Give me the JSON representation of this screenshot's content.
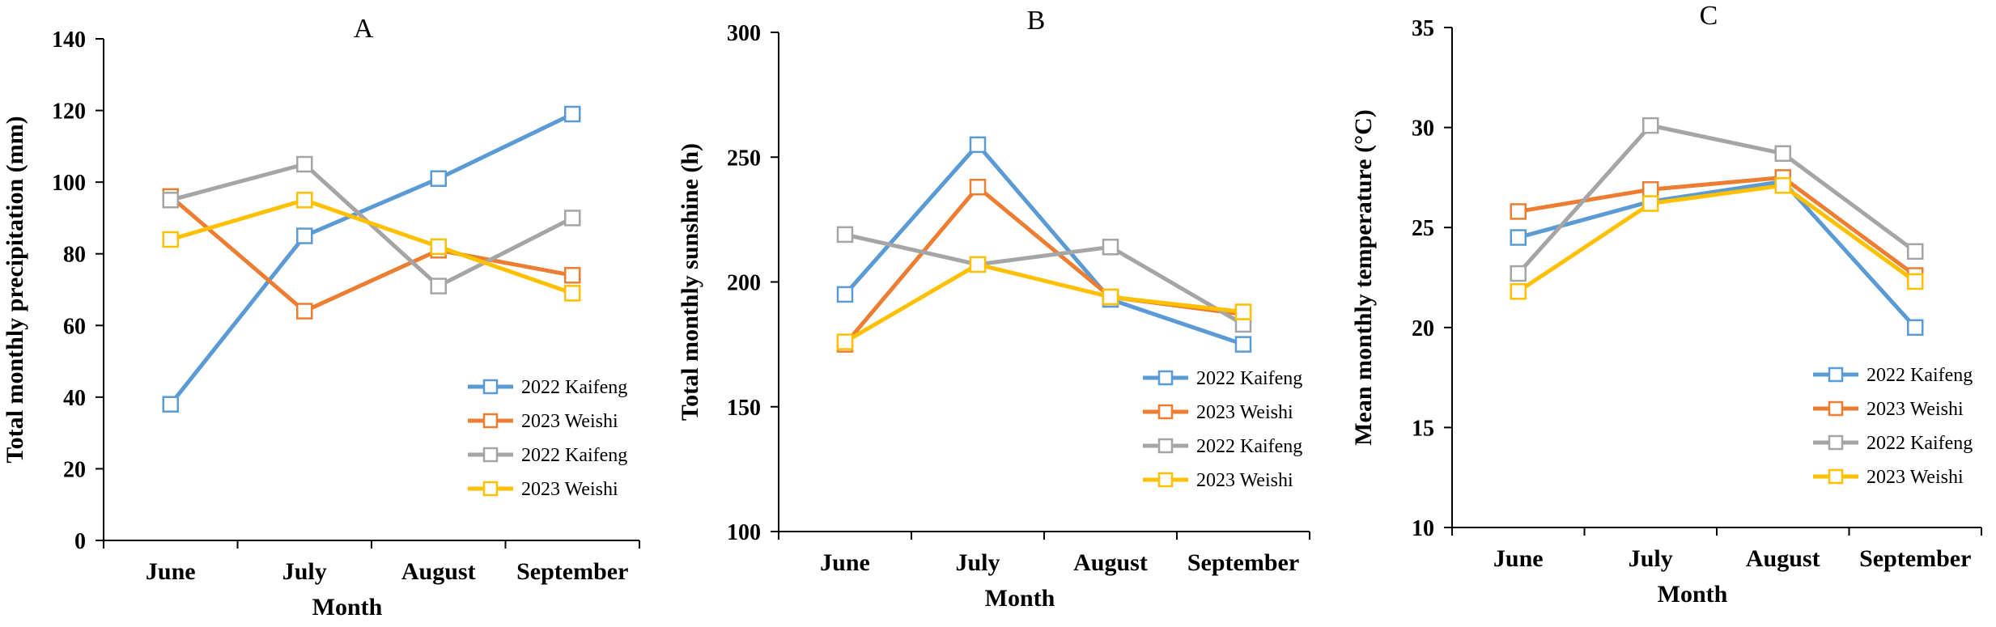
{
  "chart_data": [
    {
      "type": "line",
      "title": "A",
      "xlabel": "Month",
      "ylabel": "Total monthly precipitation (mm)",
      "categories": [
        "June",
        "July",
        "August",
        "September"
      ],
      "ylim": [
        0,
        140
      ],
      "yticks": [
        0,
        20,
        40,
        60,
        80,
        100,
        120,
        140
      ],
      "legend_position": "bottom-right",
      "series": [
        {
          "name": "2022 Kaifeng",
          "color": "#5B9BD5",
          "values": [
            38,
            85,
            101,
            119
          ]
        },
        {
          "name": "2023 Weishi",
          "color": "#ED7D31",
          "values": [
            96,
            64,
            81,
            74
          ]
        },
        {
          "name": "2022 Kaifeng",
          "color": "#A5A5A5",
          "values": [
            95,
            105,
            71,
            90
          ]
        },
        {
          "name": "2023 Weishi",
          "color": "#FFC000",
          "values": [
            84,
            95,
            82,
            69
          ]
        }
      ]
    },
    {
      "type": "line",
      "title": "B",
      "xlabel": "Month",
      "ylabel": "Total monthly sunshine (h)",
      "categories": [
        "June",
        "July",
        "August",
        "September"
      ],
      "ylim": [
        100,
        300
      ],
      "yticks": [
        100,
        150,
        200,
        250,
        300
      ],
      "legend_position": "bottom-right",
      "series": [
        {
          "name": "2022 Kaifeng",
          "color": "#5B9BD5",
          "values": [
            195,
            255,
            193,
            175
          ]
        },
        {
          "name": "2023 Weishi",
          "color": "#ED7D31",
          "values": [
            175,
            238,
            194,
            187
          ]
        },
        {
          "name": "2022 Kaifeng",
          "color": "#A5A5A5",
          "values": [
            219,
            207,
            214,
            183
          ]
        },
        {
          "name": "2023 Weishi",
          "color": "#FFC000",
          "values": [
            176,
            207,
            194,
            188
          ]
        }
      ]
    },
    {
      "type": "line",
      "title": "C",
      "xlabel": "Month",
      "ylabel": "Mean monthly temperature (°C)",
      "categories": [
        "June",
        "July",
        "August",
        "September"
      ],
      "ylim": [
        10,
        35
      ],
      "yticks": [
        10,
        15,
        20,
        25,
        30,
        35
      ],
      "legend_position": "bottom-right",
      "series": [
        {
          "name": "2022 Kaifeng",
          "color": "#5B9BD5",
          "values": [
            24.5,
            26.3,
            27.3,
            20.0
          ]
        },
        {
          "name": "2023 Weishi",
          "color": "#ED7D31",
          "values": [
            25.8,
            26.9,
            27.5,
            22.6
          ]
        },
        {
          "name": "2022 Kaifeng",
          "color": "#A5A5A5",
          "values": [
            22.7,
            30.1,
            28.7,
            23.8
          ]
        },
        {
          "name": "2023 Weishi",
          "color": "#FFC000",
          "values": [
            21.8,
            26.2,
            27.1,
            22.3
          ]
        }
      ]
    }
  ]
}
